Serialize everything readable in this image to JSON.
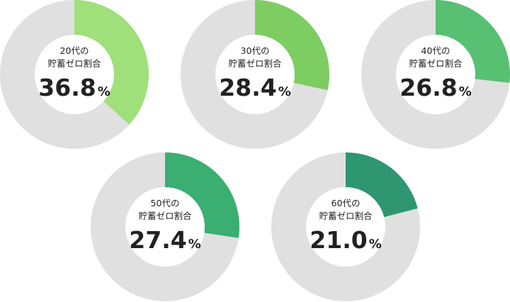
{
  "chart_data": [
    {
      "type": "donut",
      "title": "20代の",
      "subtitle": "貯蓄ゼロ割合",
      "values": [
        36.8
      ],
      "value_labels": [
        "36.8"
      ],
      "unit": "%",
      "ylim": [
        0,
        100
      ],
      "color": "#9fe07a",
      "track_color": "#e0e0e0"
    },
    {
      "type": "donut",
      "title": "30代の",
      "subtitle": "貯蓄ゼロ割合",
      "values": [
        28.4
      ],
      "value_labels": [
        "28.4"
      ],
      "unit": "%",
      "ylim": [
        0,
        100
      ],
      "color": "#7dcd62",
      "track_color": "#e0e0e0"
    },
    {
      "type": "donut",
      "title": "40代の",
      "subtitle": "貯蓄ゼロ割合",
      "values": [
        26.8
      ],
      "value_labels": [
        "26.8"
      ],
      "unit": "%",
      "ylim": [
        0,
        100
      ],
      "color": "#58c072",
      "track_color": "#e0e0e0"
    },
    {
      "type": "donut",
      "title": "50代の",
      "subtitle": "貯蓄ゼロ割合",
      "values": [
        27.4
      ],
      "value_labels": [
        "27.4"
      ],
      "unit": "%",
      "ylim": [
        0,
        100
      ],
      "color": "#3bae72",
      "track_color": "#e0e0e0"
    },
    {
      "type": "donut",
      "title": "60代の",
      "subtitle": "貯蓄ゼロ割合",
      "values": [
        21.0
      ],
      "value_labels": [
        "21.0"
      ],
      "unit": "%",
      "ylim": [
        0,
        100
      ],
      "color": "#2e9670",
      "track_color": "#e0e0e0"
    }
  ]
}
